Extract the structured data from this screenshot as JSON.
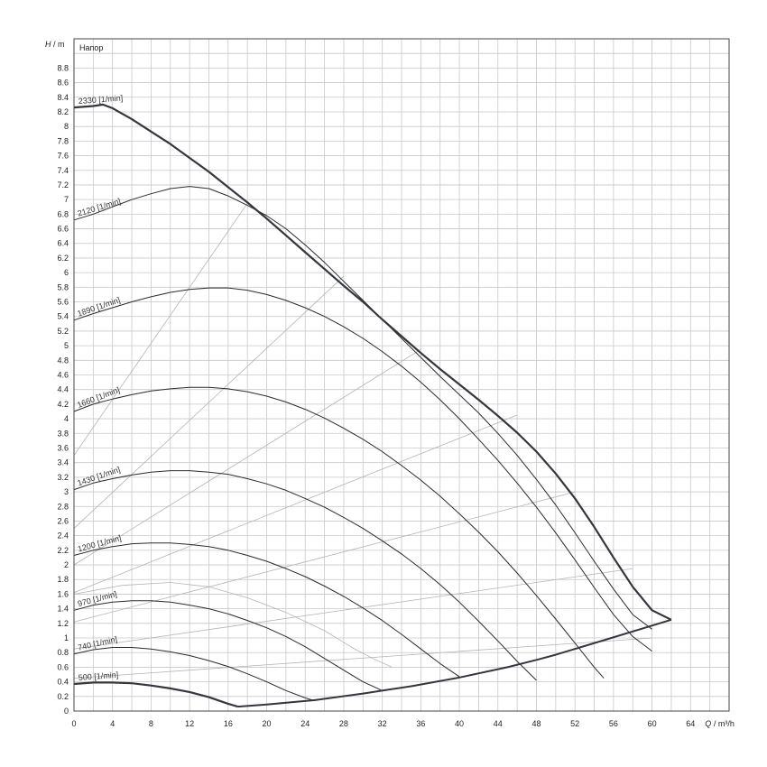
{
  "chart_data": {
    "type": "line",
    "title": "Напор",
    "ylabel_symbol": "H",
    "ylabel_unit": "/ m",
    "xlabel_symbol": "Q",
    "xlabel_unit": "/ m³/h",
    "xlim": [
      0,
      68
    ],
    "ylim": [
      0,
      9.2
    ],
    "x_ticks": [
      0,
      4,
      8,
      12,
      16,
      20,
      24,
      28,
      32,
      36,
      40,
      44,
      48,
      52,
      56,
      60,
      64
    ],
    "y_tick_step": 0.2,
    "y_tick_max": 8.8,
    "grid": true,
    "colors": {
      "curve": "#2b2b2b",
      "envelope": "#33373d",
      "guide": "#b4b4b4",
      "grid": "#c8c8c8",
      "frame": "#444444"
    },
    "series": [
      {
        "name": "500 [1/min]",
        "x": [
          0,
          2,
          4,
          6,
          8,
          10,
          12,
          14,
          16,
          17
        ],
        "y": [
          0.37,
          0.39,
          0.39,
          0.38,
          0.35,
          0.31,
          0.26,
          0.19,
          0.1,
          0.06
        ]
      },
      {
        "name": "740 [1/min]",
        "x": [
          0,
          2,
          4,
          6,
          8,
          10,
          12,
          14,
          16,
          18,
          20,
          22,
          24,
          25
        ],
        "y": [
          0.78,
          0.84,
          0.87,
          0.87,
          0.85,
          0.81,
          0.76,
          0.69,
          0.61,
          0.51,
          0.4,
          0.28,
          0.18,
          0.14
        ]
      },
      {
        "name": "970 [1/min]",
        "x": [
          0,
          2,
          4,
          6,
          8,
          10,
          12,
          14,
          16,
          18,
          20,
          22,
          24,
          26,
          28,
          30,
          32
        ],
        "y": [
          1.38,
          1.45,
          1.49,
          1.51,
          1.51,
          1.49,
          1.45,
          1.4,
          1.33,
          1.24,
          1.14,
          1.02,
          0.88,
          0.72,
          0.56,
          0.4,
          0.28
        ]
      },
      {
        "name": "1200 [1/min]",
        "x": [
          0,
          2,
          4,
          6,
          8,
          10,
          12,
          14,
          16,
          18,
          20,
          22,
          24,
          26,
          28,
          30,
          32,
          34,
          36,
          38,
          40
        ],
        "y": [
          2.13,
          2.2,
          2.25,
          2.29,
          2.3,
          2.3,
          2.28,
          2.25,
          2.2,
          2.13,
          2.05,
          1.95,
          1.84,
          1.71,
          1.57,
          1.41,
          1.24,
          1.05,
          0.85,
          0.65,
          0.47
        ]
      },
      {
        "name": "1430 [1/min]",
        "x": [
          0,
          2,
          4,
          6,
          8,
          10,
          12,
          14,
          16,
          18,
          20,
          22,
          24,
          26,
          28,
          30,
          32,
          34,
          36,
          38,
          40,
          42,
          44,
          46,
          48
        ],
        "y": [
          3.03,
          3.12,
          3.18,
          3.23,
          3.27,
          3.29,
          3.29,
          3.27,
          3.24,
          3.18,
          3.11,
          3.02,
          2.91,
          2.79,
          2.65,
          2.5,
          2.33,
          2.15,
          1.95,
          1.73,
          1.49,
          1.23,
          0.96,
          0.68,
          0.42
        ]
      },
      {
        "name": "1660 [1/min]",
        "x": [
          0,
          2,
          4,
          6,
          8,
          10,
          12,
          14,
          16,
          18,
          20,
          22,
          24,
          26,
          28,
          30,
          32,
          34,
          36,
          38,
          40,
          42,
          44,
          46,
          48,
          50,
          52,
          54,
          55
        ],
        "y": [
          4.1,
          4.2,
          4.27,
          4.33,
          4.38,
          4.41,
          4.43,
          4.43,
          4.41,
          4.37,
          4.31,
          4.23,
          4.13,
          4.01,
          3.87,
          3.72,
          3.55,
          3.36,
          3.16,
          2.94,
          2.7,
          2.45,
          2.18,
          1.89,
          1.58,
          1.26,
          0.93,
          0.6,
          0.45
        ]
      },
      {
        "name": "1890 [1/min]",
        "x": [
          0,
          2,
          4,
          6,
          8,
          10,
          12,
          14,
          16,
          18,
          20,
          22,
          24,
          26,
          28,
          30,
          32,
          34,
          36,
          38,
          40,
          42,
          44,
          46,
          48,
          50,
          52,
          54,
          56,
          58,
          60
        ],
        "y": [
          5.35,
          5.44,
          5.52,
          5.6,
          5.67,
          5.73,
          5.77,
          5.79,
          5.79,
          5.76,
          5.7,
          5.62,
          5.52,
          5.4,
          5.26,
          5.1,
          4.92,
          4.72,
          4.5,
          4.26,
          4.0,
          3.72,
          3.43,
          3.12,
          2.79,
          2.44,
          2.07,
          1.69,
          1.32,
          1.02,
          0.82
        ]
      },
      {
        "name": "2120 [1/min]",
        "x": [
          0,
          2,
          4,
          6,
          8,
          10,
          12,
          14,
          16,
          18,
          20,
          22,
          24,
          26,
          28,
          30,
          32,
          34,
          36,
          38,
          40,
          42,
          44,
          46,
          48,
          50,
          52,
          54,
          56,
          58,
          60
        ],
        "y": [
          6.72,
          6.8,
          6.9,
          7.0,
          7.08,
          7.15,
          7.18,
          7.15,
          7.05,
          6.92,
          6.78,
          6.6,
          6.38,
          6.14,
          5.88,
          5.62,
          5.36,
          5.1,
          4.84,
          4.58,
          4.33,
          4.08,
          3.8,
          3.5,
          3.17,
          2.82,
          2.44,
          2.05,
          1.67,
          1.32,
          1.12
        ]
      },
      {
        "name": "2330 [1/min]",
        "x": [
          0,
          2,
          3,
          4,
          6,
          8,
          10,
          12,
          14,
          16,
          18,
          20,
          22,
          24,
          26,
          28,
          30,
          32,
          34,
          36,
          38,
          40,
          42,
          44,
          46,
          48,
          50,
          52,
          54,
          56,
          58,
          60,
          62
        ],
        "y": [
          8.26,
          8.28,
          8.3,
          8.25,
          8.1,
          7.93,
          7.76,
          7.57,
          7.38,
          7.17,
          6.96,
          6.74,
          6.51,
          6.28,
          6.05,
          5.82,
          5.6,
          5.36,
          5.13,
          4.9,
          4.68,
          4.47,
          4.26,
          4.04,
          3.81,
          3.55,
          3.25,
          2.91,
          2.52,
          2.1,
          1.7,
          1.38,
          1.25
        ]
      }
    ],
    "min_curve": {
      "x": [
        17,
        20,
        25,
        30,
        32.5,
        35,
        40,
        45,
        48,
        50,
        55,
        60,
        62
      ],
      "y": [
        0.06,
        0.09,
        0.15,
        0.24,
        0.29,
        0.34,
        0.46,
        0.6,
        0.7,
        0.77,
        0.97,
        1.17,
        1.25
      ]
    },
    "system_lines": [
      {
        "x": [
          0,
          18
        ],
        "y": [
          3.5,
          6.95
        ]
      },
      {
        "x": [
          0,
          28
        ],
        "y": [
          2.5,
          5.95
        ]
      },
      {
        "x": [
          0,
          36
        ],
        "y": [
          2.0,
          4.95
        ]
      },
      {
        "x": [
          0,
          46
        ],
        "y": [
          1.62,
          4.05
        ]
      },
      {
        "x": [
          0,
          52
        ],
        "y": [
          1.22,
          3.0
        ]
      },
      {
        "x": [
          0,
          58
        ],
        "y": [
          0.85,
          1.95
        ]
      },
      {
        "x": [
          0,
          60
        ],
        "y": [
          0.45,
          1.0
        ]
      },
      {
        "x": [
          0,
          5,
          10,
          14,
          18,
          22,
          26,
          29,
          31,
          33
        ],
        "y": [
          1.6,
          1.72,
          1.76,
          1.7,
          1.55,
          1.35,
          1.1,
          0.86,
          0.72,
          0.6
        ]
      }
    ]
  }
}
